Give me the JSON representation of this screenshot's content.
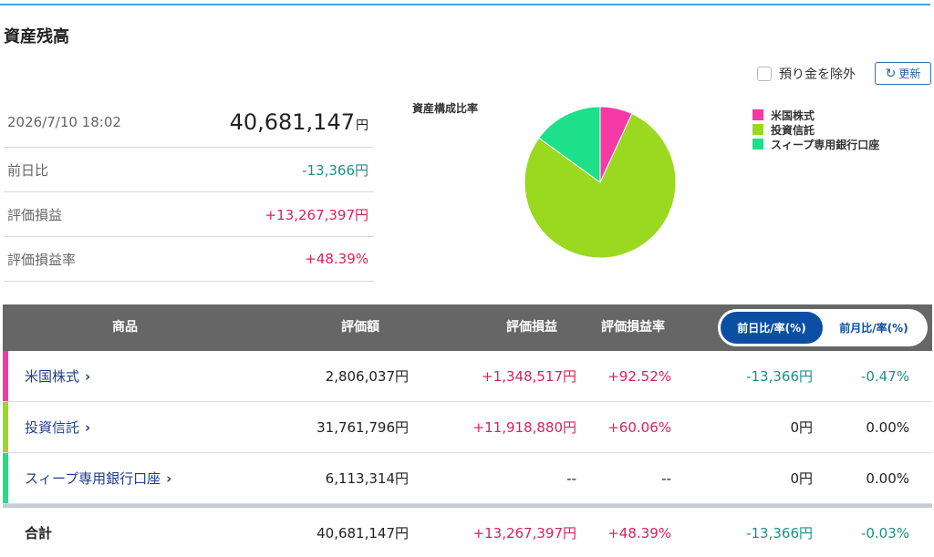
{
  "title": "資産残高",
  "exclude_deposit": {
    "label": "預り金を除外",
    "checked": false
  },
  "refresh": {
    "label": "更新",
    "icon": "refresh-icon"
  },
  "summary": {
    "datetime": "2026/7/10 18:02",
    "total_value": "40,681,147",
    "total_unit": "円",
    "rows": [
      {
        "label": "前日比",
        "value": "-13,366円"
      },
      {
        "label": "評価損益",
        "value": "+13,267,397円"
      },
      {
        "label": "評価損益率",
        "value": "+48.39%"
      }
    ]
  },
  "colors": {
    "us_stock": "#f53aa6",
    "fund": "#9ad91f",
    "sweep": "#1fe08a",
    "header_bg": "#666666",
    "accent_blue": "#0a4fa3",
    "positive": "#d6245c",
    "negative": "#1e8f8a"
  },
  "chart_data": {
    "type": "pie",
    "title": "資産構成比率",
    "categories": [
      "米国株式",
      "投資信託",
      "スィープ専用銀行口座"
    ],
    "values": [
      2806037,
      31761796,
      6113314
    ],
    "colors": [
      "#f53aa6",
      "#9ad91f",
      "#1fe08a"
    ],
    "legend_position": "right"
  },
  "table": {
    "headers": {
      "product": "商品",
      "value": "評価額",
      "pl": "評価損益",
      "pl_rate": "評価損益率"
    },
    "toggle": {
      "active": "前日比/率(%)",
      "inactive": "前月比/率(%)"
    },
    "rows": [
      {
        "name": "米国株式",
        "value": "2,806,037円",
        "pl": "+1,348,517円",
        "pl_rate": "+92.52%",
        "diff": "-13,366円",
        "diff_rate": "-0.47%"
      },
      {
        "name": "投資信託",
        "value": "31,761,796円",
        "pl": "+11,918,880円",
        "pl_rate": "+60.06%",
        "diff": "0円",
        "diff_rate": "0.00%"
      },
      {
        "name": "スィープ専用銀行口座",
        "value": "6,113,314円",
        "pl": "--",
        "pl_rate": "--",
        "diff": "0円",
        "diff_rate": "0.00%"
      }
    ],
    "total": {
      "label": "合計",
      "value": "40,681,147円",
      "pl": "+13,267,397円",
      "pl_rate": "+48.39%",
      "diff": "-13,366円",
      "diff_rate": "-0.03%"
    }
  }
}
